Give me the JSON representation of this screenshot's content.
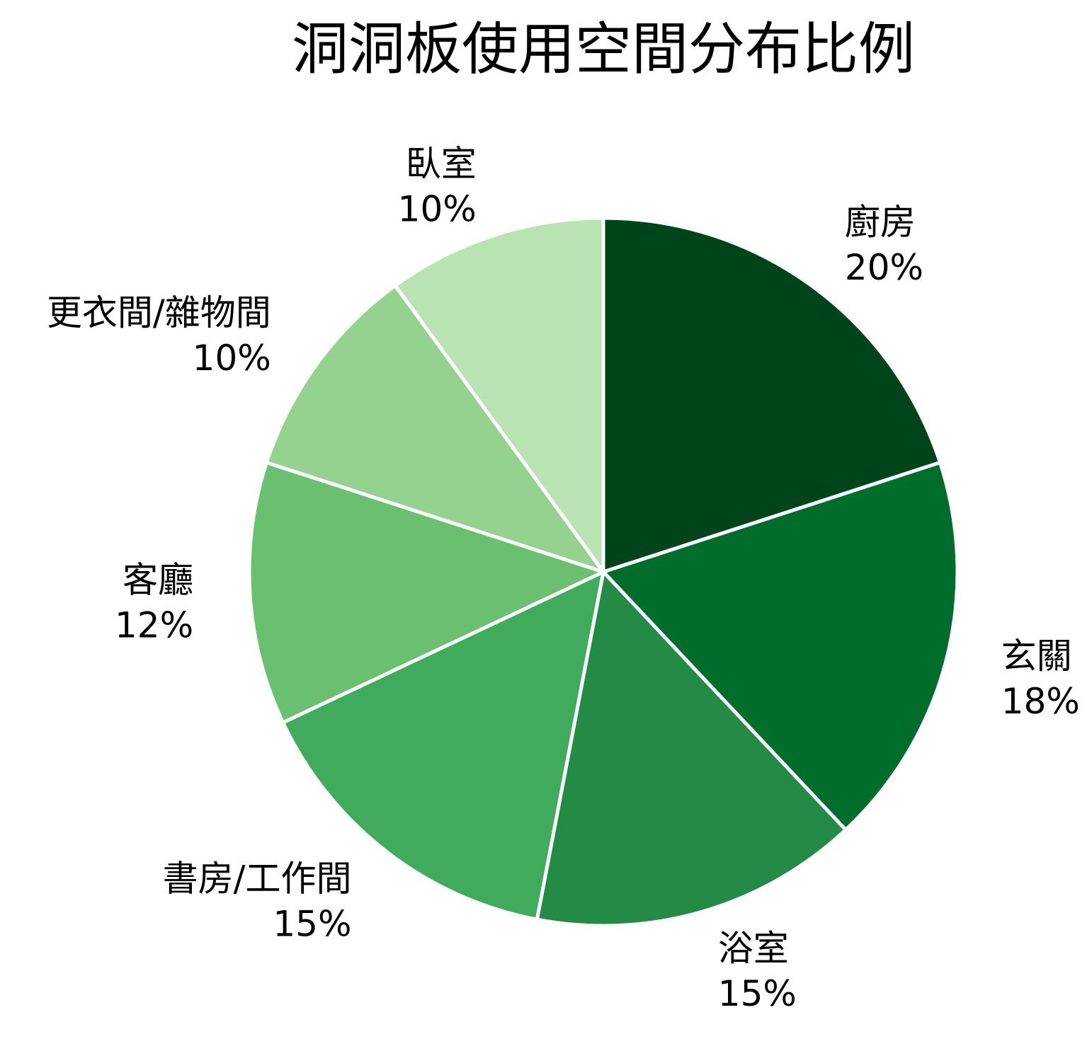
{
  "chart_data": {
    "type": "pie",
    "title": "洞洞板使用空間分布比例",
    "start": "top",
    "direction": "clockwise",
    "slices": [
      {
        "label": "廚房",
        "value": 20,
        "percent_label": "20%",
        "color": "#00441b"
      },
      {
        "label": "玄關",
        "value": 18,
        "percent_label": "18%",
        "color": "#006d2c"
      },
      {
        "label": "浴室",
        "value": 15,
        "percent_label": "15%",
        "color": "#238b45"
      },
      {
        "label": "書房/工作間",
        "value": 15,
        "percent_label": "15%",
        "color": "#41ab5d"
      },
      {
        "label": "客廳",
        "value": 12,
        "percent_label": "12%",
        "color": "#6abf71"
      },
      {
        "label": "更衣間/雜物間",
        "value": 10,
        "percent_label": "10%",
        "color": "#95d290"
      },
      {
        "label": "臥室",
        "value": 10,
        "percent_label": "10%",
        "color": "#b9e3b2"
      }
    ]
  }
}
